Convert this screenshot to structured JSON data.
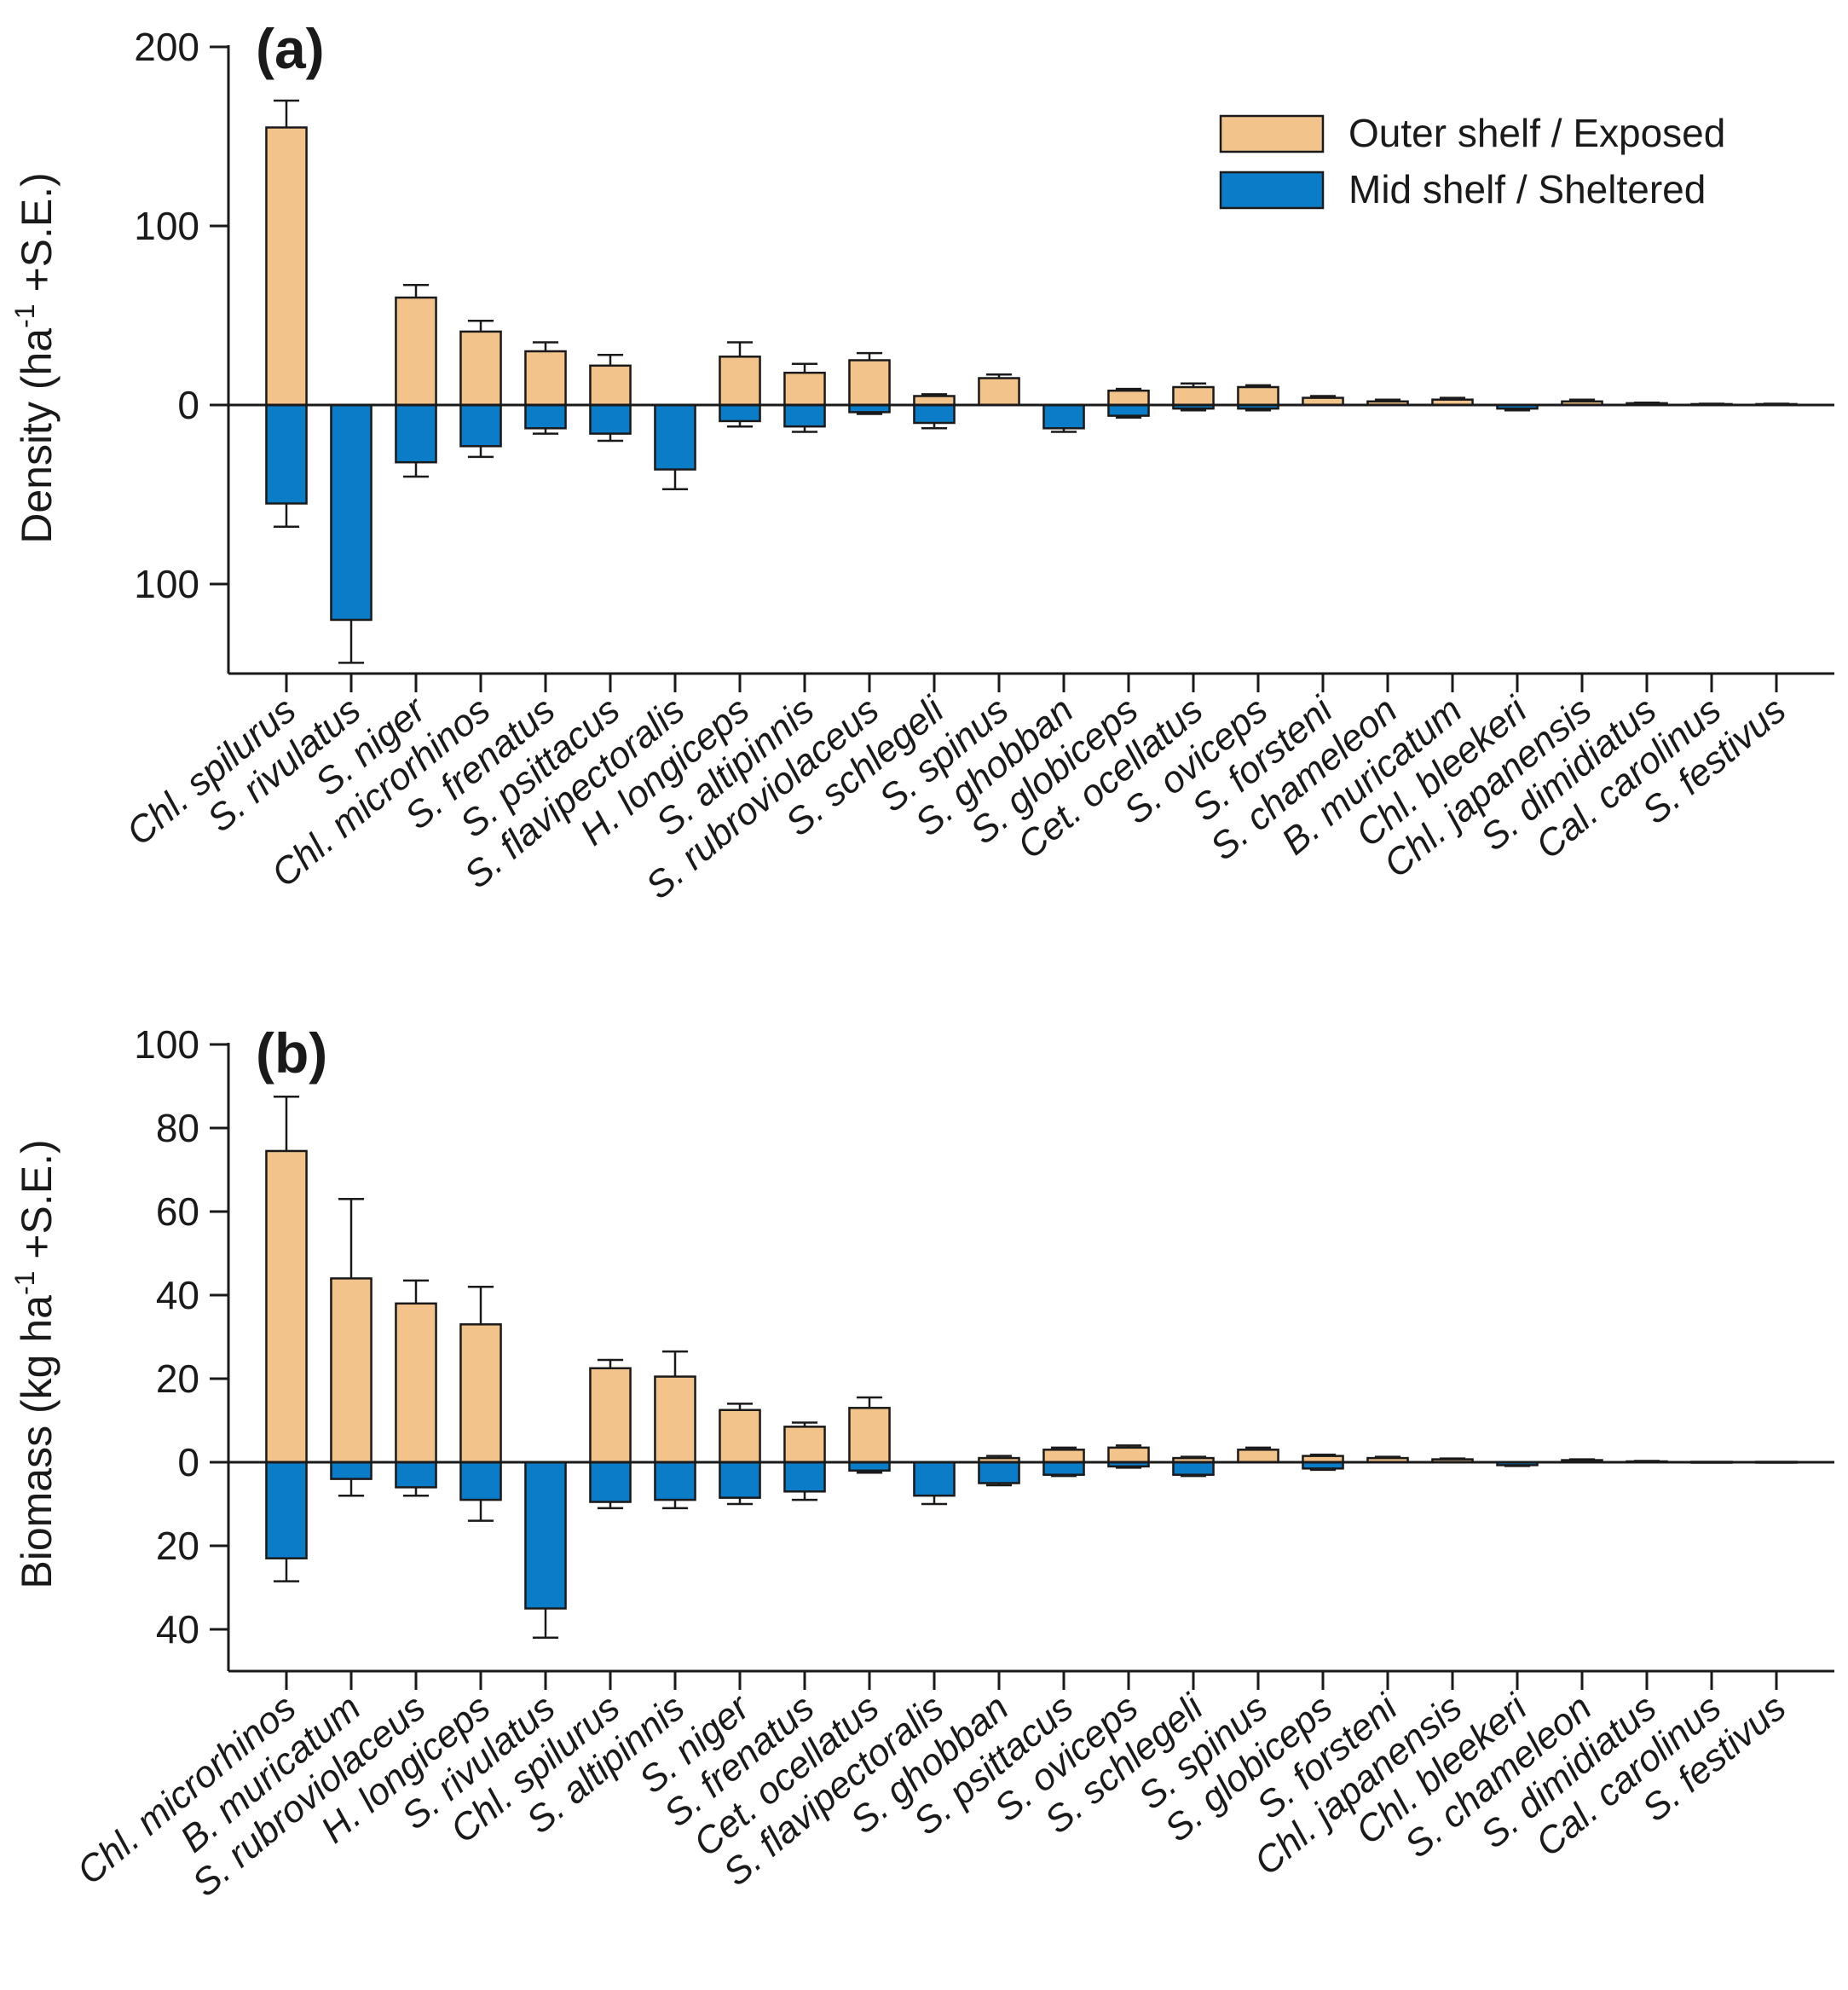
{
  "colors": {
    "outer": "#f2c38a",
    "mid": "#0a7cc8",
    "axis": "#1a1a1a"
  },
  "legend": {
    "outer": "Outer shelf / Exposed",
    "mid": "Mid shelf / Sheltered"
  },
  "chart_data": [
    {
      "type": "bar",
      "panel": "(a)",
      "title": "",
      "ylabel": "Density (ha⁻¹ +S.E.)",
      "ylim": [
        -150,
        200
      ],
      "yticks": [
        200,
        100,
        0,
        -100
      ],
      "ytick_labels": [
        "200",
        "100",
        "0",
        "100"
      ],
      "categories": [
        "Chl. spilurus",
        "S. rivulatus",
        "S. niger",
        "Chl. microrhinos",
        "S. frenatus",
        "S. psittacus",
        "S. flavipectoralis",
        "H. longiceps",
        "S. altipinnis",
        "S. rubroviolaceus",
        "S. schlegeli",
        "S. spinus",
        "S. ghobban",
        "S. globiceps",
        "Cet. ocellatus",
        "S. oviceps",
        "S. forsteni",
        "S. chameleon",
        "B. muricatum",
        "Chl. bleekeri",
        "Chl. japanensis",
        "S. dimidiatus",
        "Cal. carolinus",
        "S. festivus"
      ],
      "series": [
        {
          "name": "Outer shelf / Exposed",
          "values": [
            155,
            0,
            60,
            41,
            30,
            22,
            0,
            27,
            18,
            25,
            5,
            15,
            0,
            8,
            10,
            10,
            4,
            2,
            3,
            0,
            2,
            1,
            0.5,
            0.5
          ],
          "errors": [
            15,
            0,
            7,
            6,
            5,
            6,
            0,
            8,
            5,
            4,
            1,
            2,
            0,
            1,
            2,
            1,
            1,
            1,
            1,
            0,
            1,
            0.3,
            0.2,
            0.2
          ]
        },
        {
          "name": "Mid shelf / Sheltered",
          "values": [
            -55,
            -120,
            -32,
            -23,
            -13,
            -16,
            -36,
            -9,
            -12,
            -4,
            -10,
            0,
            -13,
            -6,
            -2,
            -2,
            0,
            0,
            0,
            -2,
            0,
            0,
            0,
            0
          ],
          "errors": [
            13,
            24,
            8,
            6,
            3,
            4,
            11,
            3,
            3,
            1,
            3,
            0,
            2,
            1,
            1,
            1,
            0,
            0,
            0,
            1,
            0,
            0,
            0,
            0
          ]
        }
      ]
    },
    {
      "type": "bar",
      "panel": "(b)",
      "title": "",
      "ylabel": "Biomass (kg ha⁻¹ +S.E.)",
      "ylim": [
        -50,
        100
      ],
      "yticks": [
        100,
        80,
        60,
        40,
        20,
        0,
        -20,
        -40
      ],
      "ytick_labels": [
        "100",
        "80",
        "60",
        "40",
        "20",
        "0",
        "20",
        "40"
      ],
      "categories": [
        "Chl. microrhinos",
        "B. muricatum",
        "S. rubroviolaceus",
        "H. longiceps",
        "S. rivulatus",
        "Chl. spilurus",
        "S. altipinnis",
        "S. niger",
        "S. frenatus",
        "Cet. ocellatus",
        "S. flavipectoralis",
        "S. ghobban",
        "S. psittacus",
        "S. oviceps",
        "S. schlegeli",
        "S. spinus",
        "S. globiceps",
        "S. forsteni",
        "Chl. japanensis",
        "Chl. bleekeri",
        "S. chameleon",
        "S. dimidiatus",
        "Cal. carolinus",
        "S. festivus"
      ],
      "series": [
        {
          "name": "Outer shelf / Exposed",
          "values": [
            74.5,
            44,
            38,
            33,
            0,
            22.5,
            20.5,
            12.5,
            8.5,
            13,
            0,
            1,
            3,
            3.5,
            1,
            3,
            1.5,
            1,
            0.7,
            0,
            0.5,
            0.2,
            0.1,
            0.1
          ],
          "errors": [
            13,
            19,
            5.5,
            9,
            0,
            2,
            6,
            1.5,
            1,
            2.5,
            0,
            0.5,
            0.5,
            0.5,
            0.3,
            0.5,
            0.3,
            0.3,
            0.2,
            0,
            0.2,
            0.1,
            0,
            0
          ],
          "_reconstructed": true
        },
        {
          "name": "Mid shelf / Sheltered",
          "values": [
            -23,
            -4,
            -6,
            -9,
            -35,
            -9.5,
            -9,
            -8.5,
            -7,
            -2,
            -8,
            -5,
            -3,
            -1,
            -3,
            0,
            -1.5,
            0,
            0,
            -0.7,
            0,
            0,
            0,
            0
          ],
          "errors": [
            5.5,
            4,
            2,
            5,
            7,
            1.5,
            2,
            1.5,
            2,
            0.5,
            2,
            0.5,
            0.3,
            0.3,
            0.3,
            0,
            0.3,
            0,
            0,
            0.2,
            0,
            0,
            0,
            0
          ]
        }
      ]
    }
  ]
}
